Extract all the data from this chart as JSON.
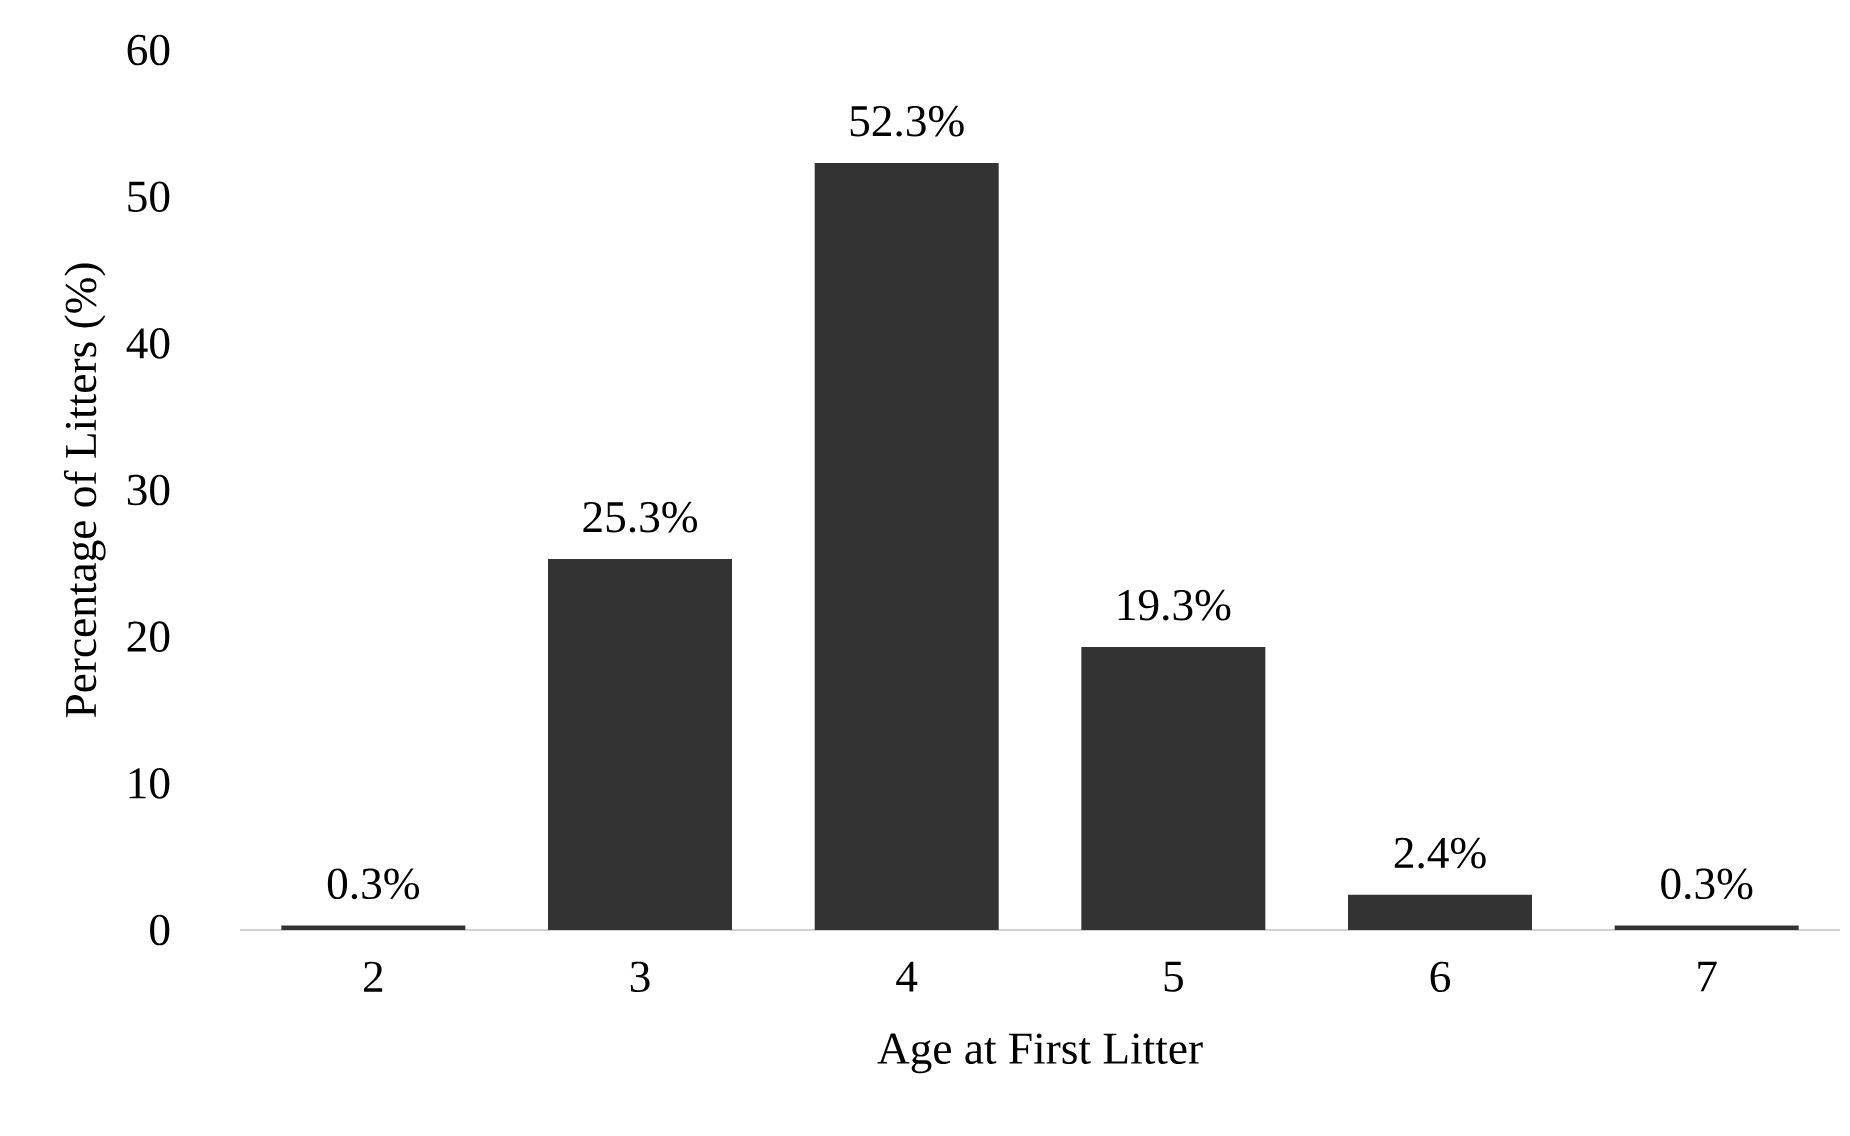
{
  "chart_data": {
    "type": "bar",
    "xlabel": "Age at First Litter",
    "ylabel": "Percentage of Litters (%)",
    "categories": [
      "2",
      "3",
      "4",
      "5",
      "6",
      "7"
    ],
    "values": [
      0.3,
      25.3,
      52.3,
      19.3,
      2.4,
      0.3
    ],
    "value_labels": [
      "0.3%",
      "25.3%",
      "52.3%",
      "19.3%",
      "2.4%",
      "0.3%"
    ],
    "color": "#333333",
    "ylim": [
      0,
      60
    ],
    "yticks": [
      0,
      10,
      20,
      30,
      40,
      50,
      60
    ]
  }
}
